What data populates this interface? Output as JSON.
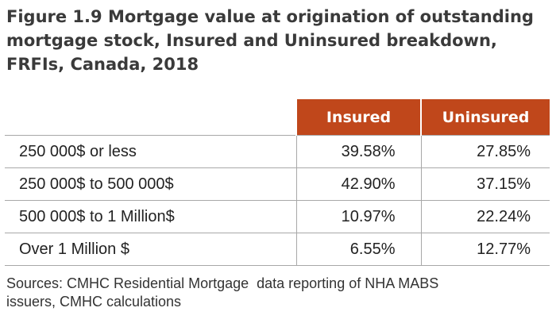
{
  "title": {
    "line1": "Figure 1.9 Mortgage value at origination of outstanding",
    "line2": "mortgage stock, Insured and Uninsured breakdown,",
    "line3": "FRFIs, Canada, 2018"
  },
  "colors": {
    "header_fill": "#c0471b",
    "header_text": "#ffffff",
    "grid_line": "#a8a8a8"
  },
  "chart_data": {
    "type": "table",
    "columns": [
      "Insured",
      "Uninsured"
    ],
    "rows": [
      {
        "label": "250 000$ or less",
        "values": [
          "39.58%",
          "27.85%"
        ]
      },
      {
        "label": "250 000$ to 500 000$",
        "values": [
          "42.90%",
          "37.15%"
        ]
      },
      {
        "label": "500 000$ to 1 Million$",
        "values": [
          "10.97%",
          "22.24%"
        ]
      },
      {
        "label": "Over 1 Million $",
        "values": [
          "6.55%",
          "12.77%"
        ]
      }
    ]
  },
  "source": {
    "line1": "Sources: CMHC Residential Mortgage  data reporting of NHA MABS",
    "line2": "issuers, CMHC calculations"
  }
}
